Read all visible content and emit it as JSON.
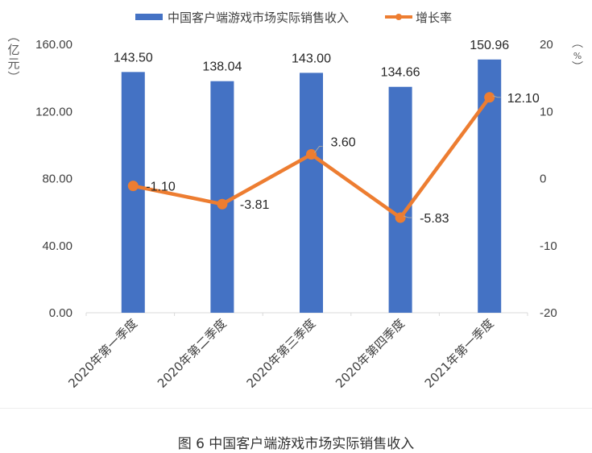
{
  "chart_data": {
    "type": "bar+line",
    "title": "",
    "categories": [
      "2020年第一季度",
      "2020年第二季度",
      "2020年第三季度",
      "2020年第四季度",
      "2021年第一季度"
    ],
    "series": [
      {
        "name": "中国客户端游戏市场实际销售收入",
        "type": "bar",
        "axis": "left",
        "color": "#4472C4",
        "values": [
          143.5,
          138.04,
          143.0,
          134.66,
          150.96
        ],
        "labels": [
          "143.50",
          "138.04",
          "143.00",
          "134.66",
          "150.96"
        ]
      },
      {
        "name": "增长率",
        "type": "line",
        "axis": "right",
        "color": "#ED7D31",
        "values": [
          -1.1,
          -3.81,
          3.6,
          -5.83,
          12.1
        ],
        "labels": [
          "-1.10",
          "-3.81",
          "3.60",
          "-5.83",
          "12.10"
        ]
      }
    ],
    "left_axis": {
      "label": "（亿元）",
      "label_chars": [
        "︵",
        "亿",
        "元",
        "︶"
      ],
      "ylim": [
        0,
        160
      ],
      "ticks": [
        "0.00",
        "40.00",
        "80.00",
        "120.00",
        "160.00"
      ],
      "tick_values": [
        0,
        40,
        80,
        120,
        160
      ]
    },
    "right_axis": {
      "label": "（%）",
      "label_chars": [
        "︵",
        "%",
        "︶"
      ],
      "ylim": [
        -20,
        20
      ],
      "ticks": [
        "-20",
        "-10",
        "0",
        "10",
        "20"
      ],
      "tick_values": [
        -20,
        -10,
        0,
        10,
        20
      ]
    },
    "legend_position": "top",
    "grid": false
  },
  "caption": "图 6  中国客户端游戏市场实际销售收入"
}
